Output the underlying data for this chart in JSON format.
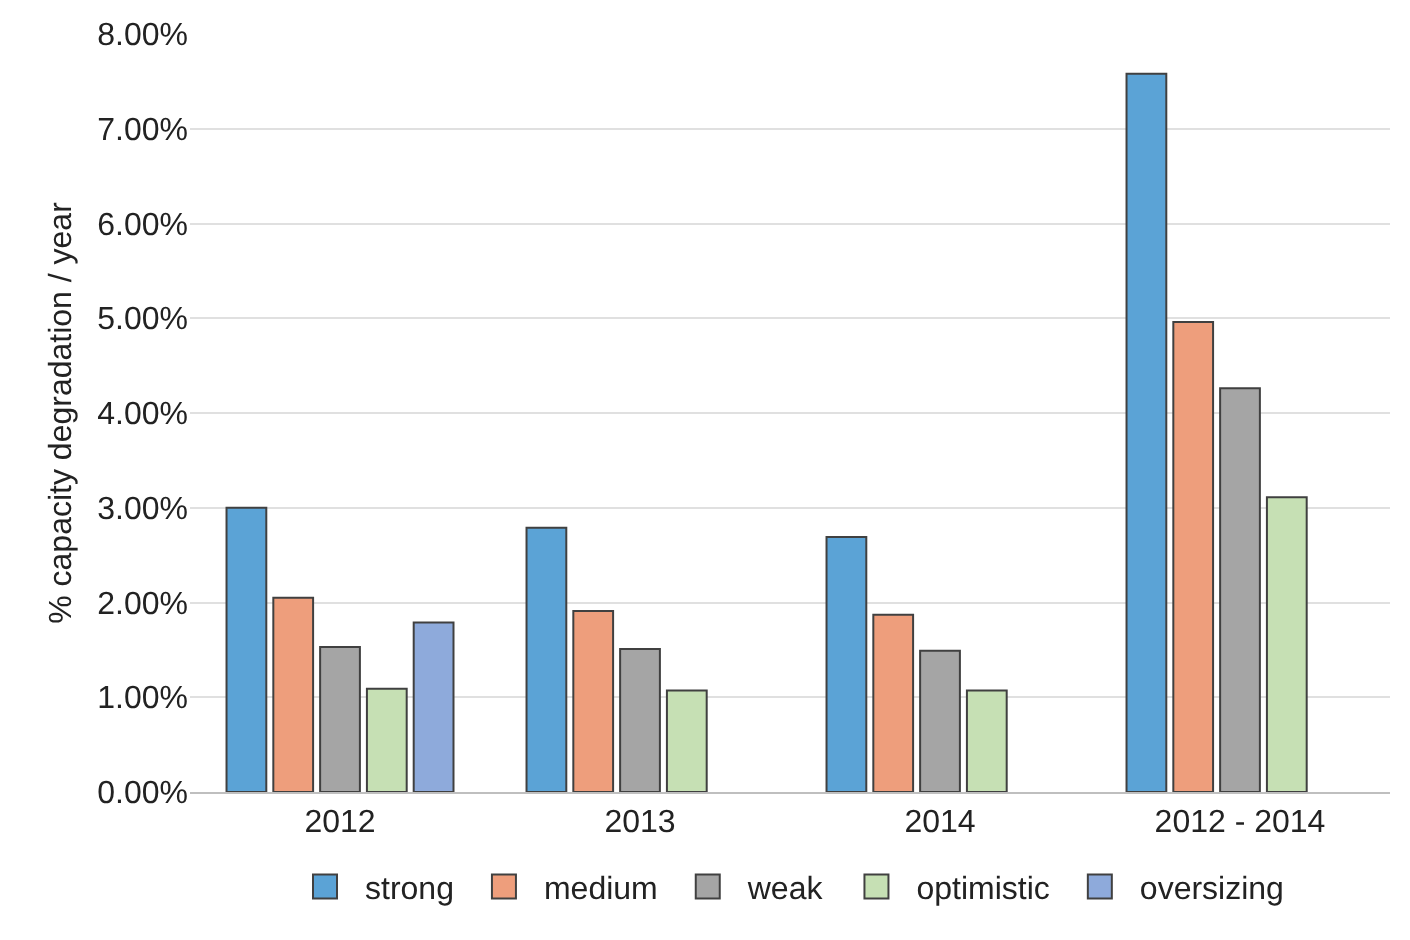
{
  "chart_data": {
    "type": "bar",
    "ylabel": "% capacity degradation / year",
    "categories": [
      "2012",
      "2013",
      "2014",
      "2012 - 2014"
    ],
    "series": [
      {
        "name": "strong",
        "color": "#5ba3d6",
        "values": [
          3.0,
          2.79,
          2.69,
          7.58
        ]
      },
      {
        "name": "medium",
        "color": "#ee9e7c",
        "values": [
          2.05,
          1.91,
          1.87,
          4.96
        ]
      },
      {
        "name": "weak",
        "color": "#a5a5a5",
        "values": [
          1.53,
          1.51,
          1.49,
          4.26
        ]
      },
      {
        "name": "optimistic",
        "color": "#c6e0b4",
        "values": [
          1.09,
          1.07,
          1.07,
          3.11
        ]
      },
      {
        "name": "oversizing",
        "color": "#8eaadb",
        "values": [
          1.79,
          null,
          null,
          null
        ]
      }
    ],
    "ylim": [
      0,
      8
    ],
    "yticks": [
      {
        "value": 0,
        "label": "0.00%"
      },
      {
        "value": 1,
        "label": "1.00%"
      },
      {
        "value": 2,
        "label": "2.00%"
      },
      {
        "value": 3,
        "label": "3.00%"
      },
      {
        "value": 4,
        "label": "4.00%"
      },
      {
        "value": 5,
        "label": "5.00%"
      },
      {
        "value": 6,
        "label": "6.00%"
      },
      {
        "value": 7,
        "label": "7.00%"
      },
      {
        "value": 8,
        "label": "8.00%"
      }
    ],
    "grid": "y",
    "legend": "bottom"
  }
}
